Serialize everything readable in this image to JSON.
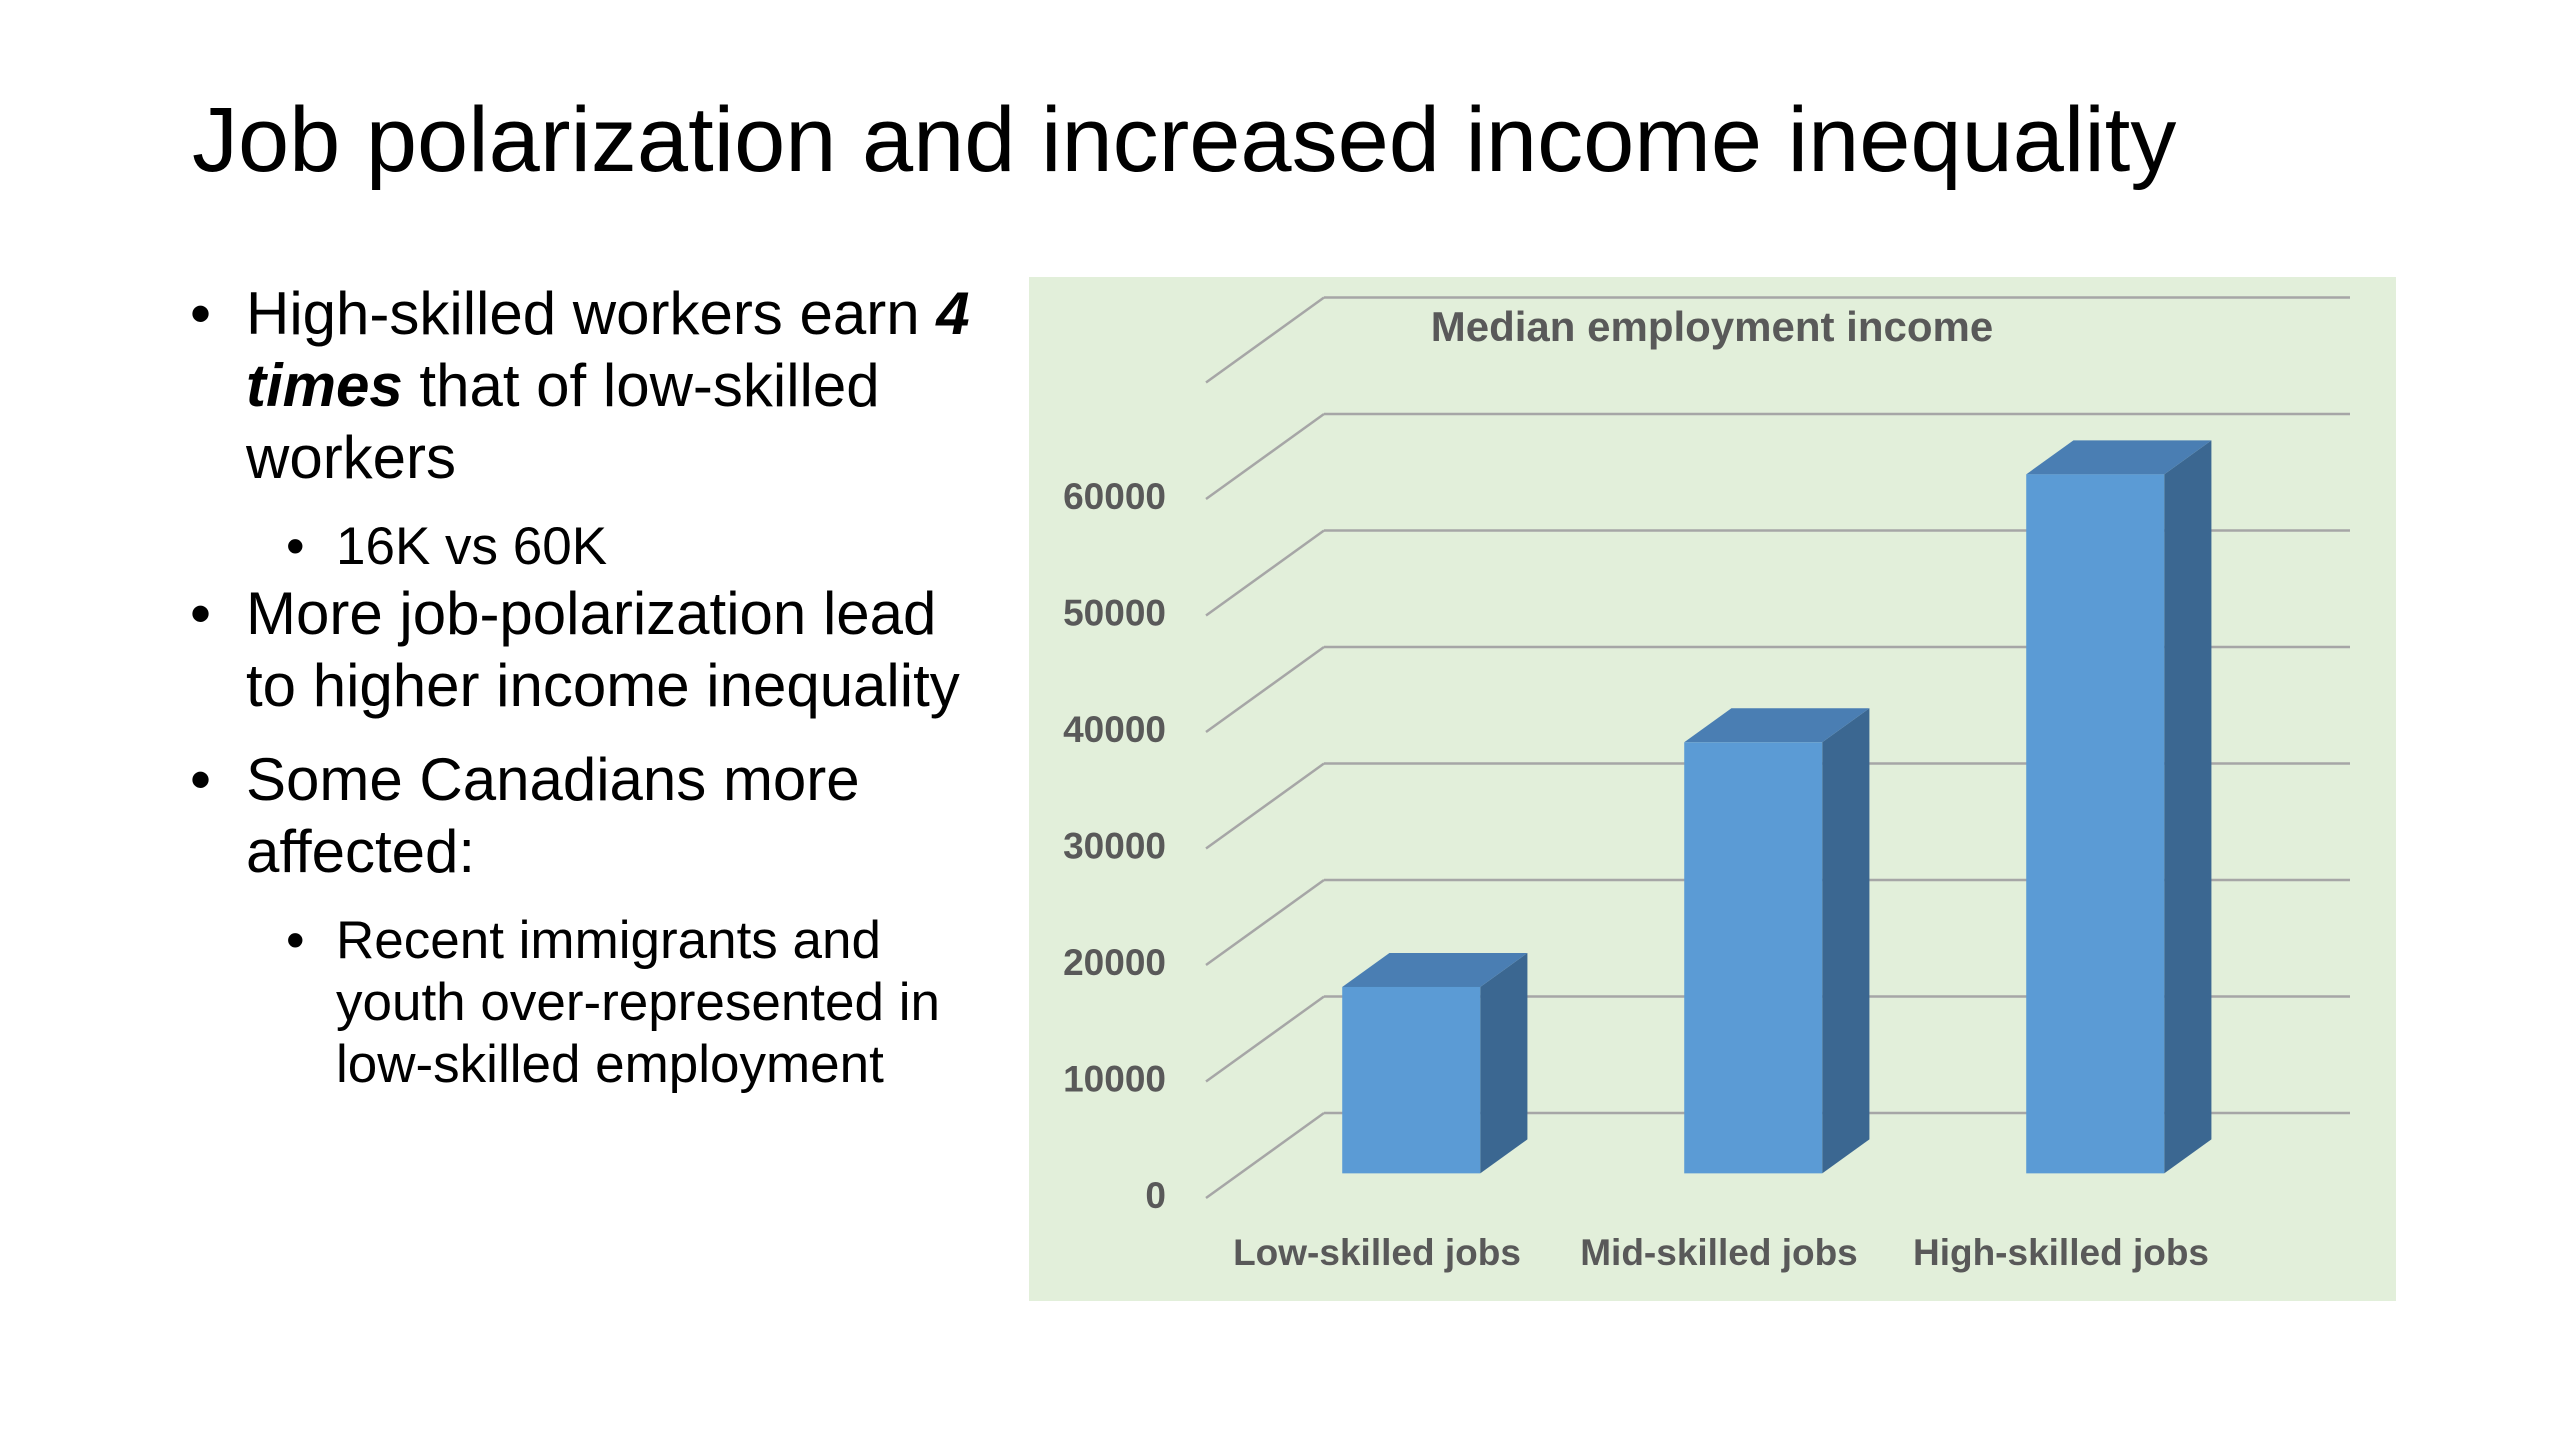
{
  "title": "Job polarization and increased income inequality",
  "bullets": [
    {
      "parts": [
        "High-skilled workers earn ",
        "4 times",
        " that of low-skilled  workers"
      ],
      "sub": [
        "16K vs 60K"
      ]
    },
    {
      "parts": [
        "More job-polarization lead to higher income inequality"
      ]
    },
    {
      "parts": [
        "Some Canadians more affected:"
      ],
      "sub": [
        "Recent immigrants and youth over-represented in low-skilled employment"
      ]
    }
  ],
  "chart_data": {
    "type": "bar3d",
    "title": "Median employment income",
    "categories": [
      "Low-skilled jobs",
      "Mid-skilled jobs",
      "High-skilled jobs"
    ],
    "values": [
      16000,
      37000,
      60000
    ],
    "color": "#5b9bd5",
    "ylim": [
      0,
      70000
    ],
    "yticks": [
      0,
      10000,
      20000,
      30000,
      40000,
      50000,
      60000
    ],
    "grid": true
  }
}
